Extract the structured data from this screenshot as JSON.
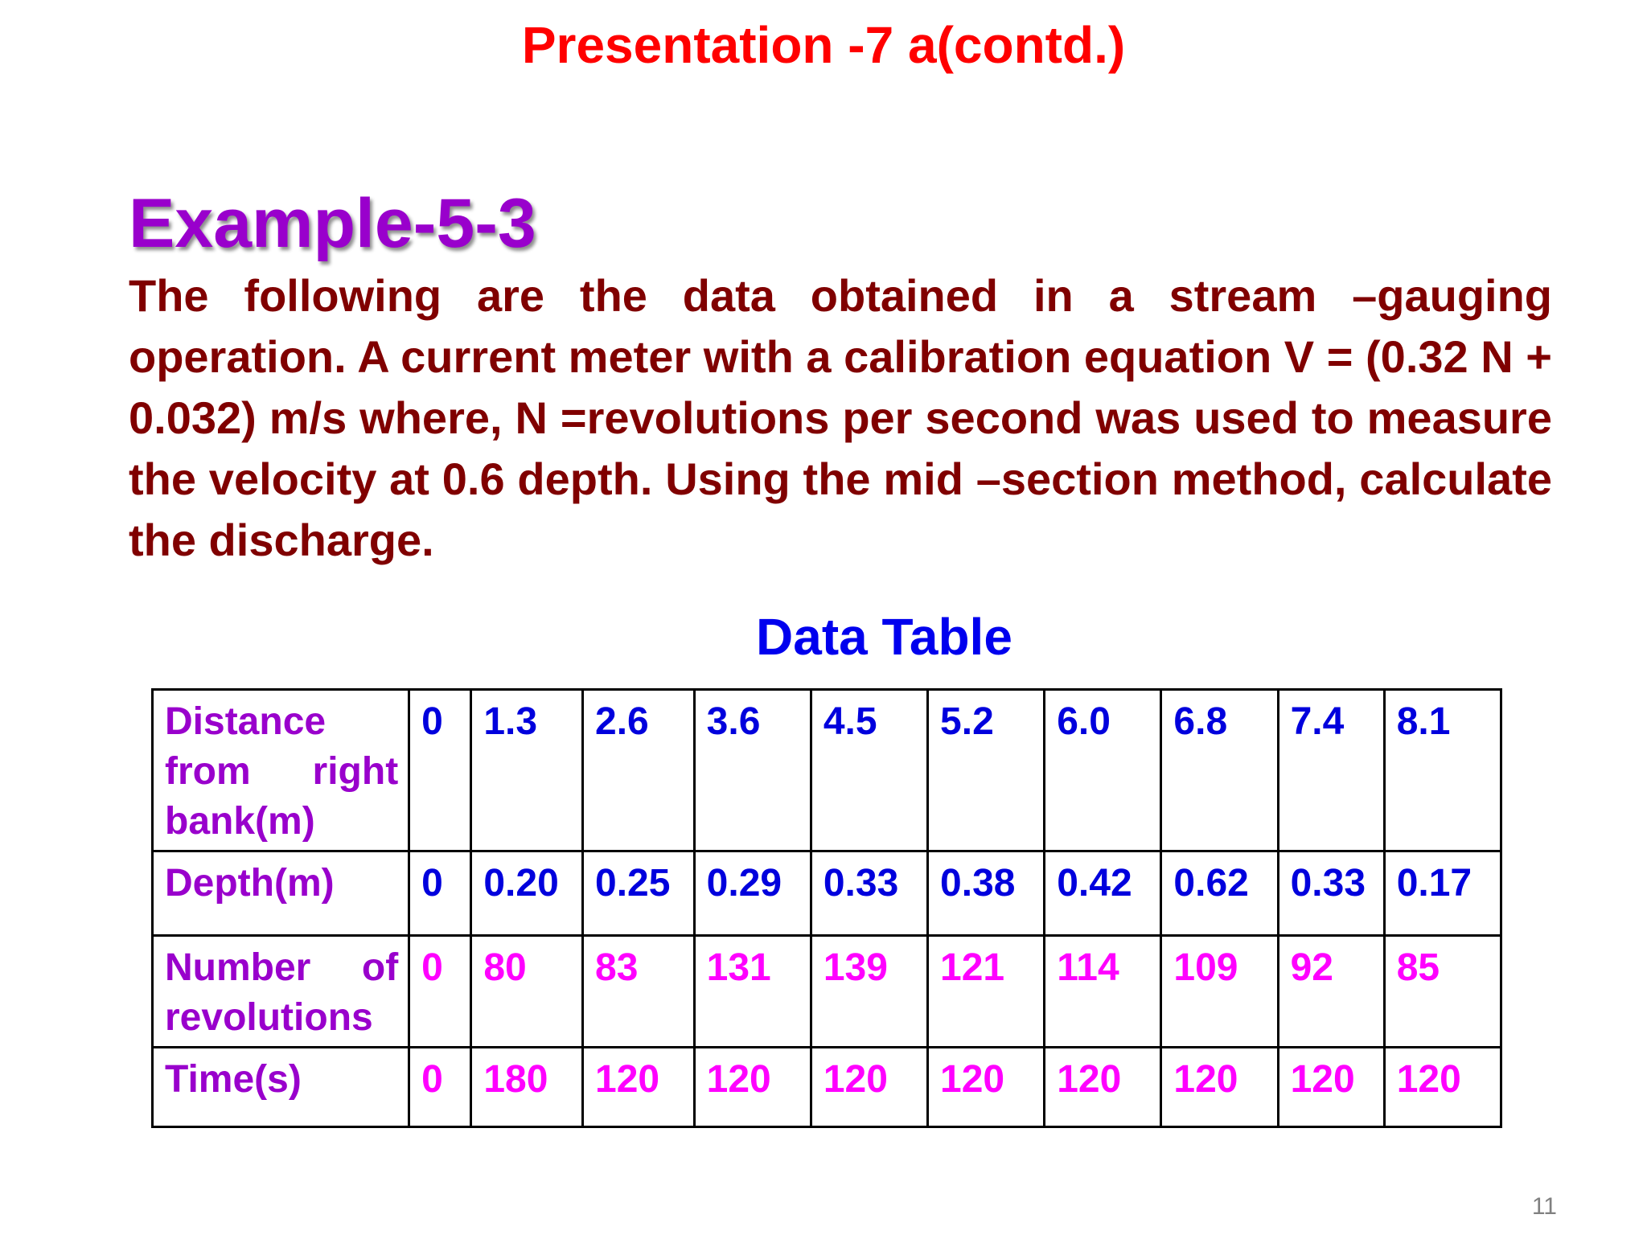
{
  "header": {
    "title": "Presentation -7 a(contd.)"
  },
  "example": {
    "title": "Example-5-3",
    "problem_text": "The following are the data obtained in a stream –gauging operation. A current meter with a calibration equation V = (0.32 N + 0.032) m/s where, N =revolutions per second was used to measure the velocity at 0.6 depth. Using the mid –section method, calculate the discharge."
  },
  "data_table": {
    "title": "Data Table",
    "rows": [
      {
        "label": "Distance from right bank(m)",
        "values": [
          "0",
          "1.3",
          "2.6",
          "3.6",
          "4.5",
          "5.2",
          "6.0",
          "6.8",
          "7.4",
          "8.1"
        ]
      },
      {
        "label": "Depth(m)",
        "values": [
          "0",
          "0.20",
          "0.25",
          "0.29",
          "0.33",
          "0.38",
          "0.42",
          "0.62",
          "0.33",
          "0.17"
        ]
      },
      {
        "label": "Number of revolutions",
        "values": [
          "0",
          "80",
          "83",
          "131",
          "139",
          "121",
          "114",
          "109",
          "92",
          "85"
        ]
      },
      {
        "label": "Time(s)",
        "values": [
          "0",
          "180",
          "120",
          "120",
          "120",
          "120",
          "120",
          "120",
          "120",
          "120"
        ]
      }
    ]
  },
  "footer": {
    "page_number": "11"
  },
  "colors": {
    "header_red": "#ff0000",
    "example_purple": "#9900cc",
    "body_maroon": "#800000",
    "table_title_blue": "#0000ee",
    "value_blue": "#0000dd",
    "value_magenta": "#ff00ff"
  }
}
